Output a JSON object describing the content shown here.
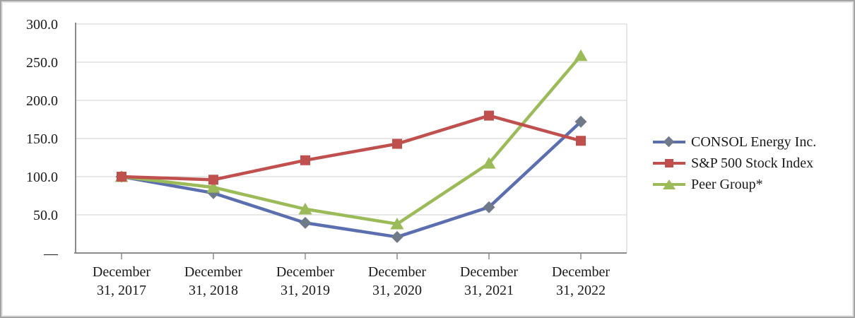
{
  "chart_data": {
    "type": "line",
    "title": "",
    "categories": [
      "December 31, 2017",
      "December 31, 2018",
      "December 31, 2019",
      "December 31, 2020",
      "December 31, 2021",
      "December 31, 2022"
    ],
    "series": [
      {
        "name": "CONSOL Energy Inc.",
        "marker": "diamond",
        "line_color": "#5b6fb0",
        "marker_color": "#6f7a88",
        "values": [
          100.0,
          78.5,
          39.5,
          21.0,
          60.0,
          172.0
        ]
      },
      {
        "name": "S&P 500 Stock Index",
        "marker": "square",
        "line_color": "#c0504d",
        "marker_color": "#c0504d",
        "values": [
          100.0,
          96.0,
          121.5,
          143.0,
          180.0,
          147.0
        ]
      },
      {
        "name": "Peer Group*",
        "marker": "triangle",
        "line_color": "#9bbb59",
        "marker_color": "#9bbb59",
        "values": [
          100.0,
          86.0,
          57.5,
          38.0,
          117.5,
          258.5
        ]
      }
    ],
    "y_axis": {
      "min": 0,
      "max": 300,
      "ticks": [
        {
          "value": 300,
          "label": "300.0"
        },
        {
          "value": 250,
          "label": "250.0"
        },
        {
          "value": 200,
          "label": "200.0"
        },
        {
          "value": 150,
          "label": "150.0"
        },
        {
          "value": 100,
          "label": "100.0"
        },
        {
          "value": 50,
          "label": "50.0"
        },
        {
          "value": 0,
          "label": "—"
        }
      ]
    },
    "grid": true,
    "legend_position": "right",
    "draw_order": [
      0,
      2,
      1
    ],
    "colors": {
      "grid": "#d9d9d9",
      "axis": "#8c8c8c",
      "text": "#1a1a1a",
      "frame_border": "#a3a3a3"
    }
  }
}
